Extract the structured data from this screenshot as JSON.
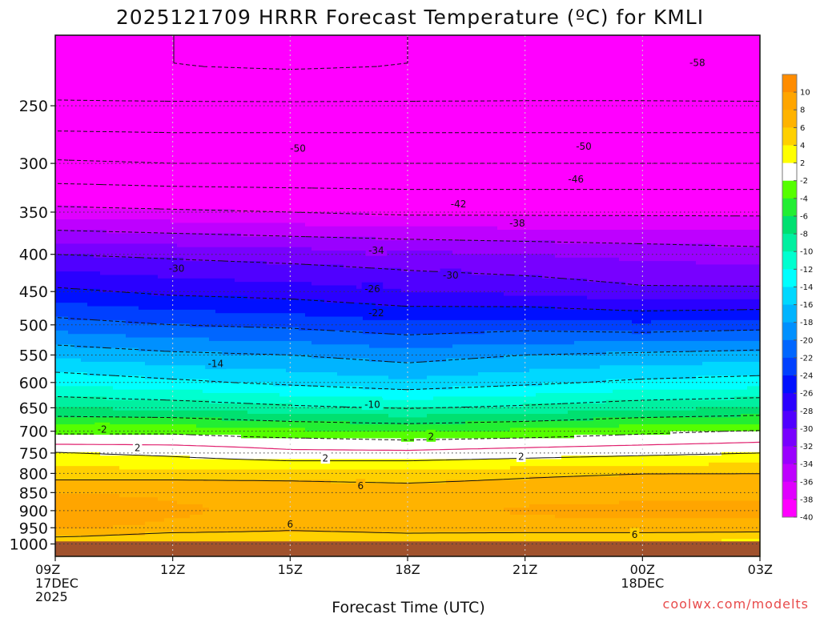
{
  "chart_data": {
    "type": "heatmap",
    "title": "2025121709 HRRR Forecast Temperature (ºC) for KMLI",
    "xlabel": "Forecast Time (UTC)",
    "ylabel": "",
    "credit": "coolwx.com/modelts",
    "x_ticks": [
      {
        "hour": 0,
        "lines": [
          "09Z",
          "17DEC",
          "2025"
        ]
      },
      {
        "hour": 3,
        "lines": [
          "12Z"
        ]
      },
      {
        "hour": 6,
        "lines": [
          "15Z"
        ]
      },
      {
        "hour": 9,
        "lines": [
          "18Z"
        ]
      },
      {
        "hour": 12,
        "lines": [
          "21Z"
        ]
      },
      {
        "hour": 15,
        "lines": [
          "00Z",
          "18DEC"
        ]
      },
      {
        "hour": 18,
        "lines": [
          "03Z"
        ]
      }
    ],
    "xlim": [
      0,
      18
    ],
    "y_axis": "pressure (hPa), reversed, log-pressure",
    "y_ticks": [
      250,
      300,
      350,
      400,
      450,
      500,
      550,
      600,
      650,
      700,
      750,
      800,
      850,
      900,
      950,
      1000
    ],
    "ylim": [
      1040,
      200
    ],
    "ground_level_hPa": 992,
    "ground_color": "#a0522d",
    "colorbar": {
      "labels": [
        "10",
        "8",
        "6",
        "4",
        "2",
        "-2",
        "-4",
        "-6",
        "-8",
        "-10",
        "-12",
        "-14",
        "-16",
        "-18",
        "-20",
        "-22",
        "-24",
        "-26",
        "-28",
        "-30",
        "-32",
        "-34",
        "-36",
        "-38",
        "-40"
      ],
      "bins": [
        {
          "lo": 10,
          "hi": 12,
          "color": "#ff8c00"
        },
        {
          "lo": 8,
          "hi": 10,
          "color": "#ffa500"
        },
        {
          "lo": 6,
          "hi": 8,
          "color": "#ffb300"
        },
        {
          "lo": 4,
          "hi": 6,
          "color": "#ffd000"
        },
        {
          "lo": 2,
          "hi": 4,
          "color": "#ffff00"
        },
        {
          "lo": -2,
          "hi": 2,
          "color": "#ffffff"
        },
        {
          "lo": -4,
          "hi": -2,
          "color": "#55ff00"
        },
        {
          "lo": -6,
          "hi": -4,
          "color": "#22ee33"
        },
        {
          "lo": -8,
          "hi": -6,
          "color": "#00e070"
        },
        {
          "lo": -10,
          "hi": -8,
          "color": "#00f0a0"
        },
        {
          "lo": -12,
          "hi": -10,
          "color": "#00ffd0"
        },
        {
          "lo": -14,
          "hi": -12,
          "color": "#00ffff"
        },
        {
          "lo": -16,
          "hi": -14,
          "color": "#00d8ff"
        },
        {
          "lo": -18,
          "hi": -16,
          "color": "#00b4ff"
        },
        {
          "lo": -20,
          "hi": -18,
          "color": "#0090ff"
        },
        {
          "lo": -22,
          "hi": -20,
          "color": "#0066ff"
        },
        {
          "lo": -24,
          "hi": -22,
          "color": "#0040ff"
        },
        {
          "lo": -26,
          "hi": -24,
          "color": "#0010ff"
        },
        {
          "lo": -28,
          "hi": -26,
          "color": "#2a00ff"
        },
        {
          "lo": -30,
          "hi": -28,
          "color": "#5000ff"
        },
        {
          "lo": -32,
          "hi": -30,
          "color": "#7800ff"
        },
        {
          "lo": -34,
          "hi": -32,
          "color": "#9a00ff"
        },
        {
          "lo": -36,
          "hi": -34,
          "color": "#be00ff"
        },
        {
          "lo": -38,
          "hi": -36,
          "color": "#e000ff"
        },
        {
          "lo": -40,
          "hi": -38,
          "color": "#ff00ff"
        }
      ],
      "below_color": "#ff00ff"
    },
    "temperature_profile": {
      "hours": [
        0,
        3,
        6,
        9,
        12,
        15,
        18
      ],
      "levels_hPa": [
        1000,
        975,
        950,
        925,
        900,
        875,
        850,
        825,
        800,
        775,
        750,
        725,
        700,
        650,
        600,
        550,
        500,
        450,
        400,
        350,
        300,
        250,
        220
      ],
      "values_C": [
        [
          3,
          4,
          4,
          4,
          4,
          4,
          3
        ],
        [
          6.5,
          5,
          5,
          5.5,
          5,
          5,
          5
        ],
        [
          8.5,
          7.5,
          6.5,
          7,
          7.5,
          7.5,
          7
        ],
        [
          9,
          8,
          7.2,
          7.2,
          7.8,
          8,
          8
        ],
        [
          10,
          8.3,
          7.5,
          7.5,
          8.2,
          8.5,
          8.5
        ],
        [
          9.2,
          8,
          7.7,
          7.5,
          7.8,
          8,
          8
        ],
        [
          8,
          7.5,
          7.2,
          7,
          7.2,
          7.5,
          7.5
        ],
        [
          6.5,
          6.5,
          6.3,
          6,
          6.5,
          7,
          7
        ],
        [
          5,
          5,
          5,
          4.8,
          5.5,
          6,
          6
        ],
        [
          3.5,
          3,
          2.5,
          2.5,
          3,
          3.5,
          4
        ],
        [
          2.2,
          1.5,
          0.5,
          0.5,
          1,
          1.5,
          2
        ],
        [
          -0.5,
          -0.5,
          -1,
          -1.5,
          -1,
          -0.5,
          0
        ],
        [
          -2.5,
          -2.5,
          -3.5,
          -4,
          -3.5,
          -2.5,
          -1.8
        ],
        [
          -8,
          -8.5,
          -9.5,
          -10.2,
          -9.5,
          -8.5,
          -8
        ],
        [
          -12.5,
          -13.5,
          -14.5,
          -15.5,
          -14.5,
          -13.5,
          -13
        ],
        [
          -16.5,
          -17.5,
          -18,
          -19,
          -18,
          -17.5,
          -17
        ],
        [
          -21,
          -22,
          -22.5,
          -23.5,
          -23,
          -23.5,
          -23
        ],
        [
          -25.5,
          -26.5,
          -27,
          -28,
          -28.5,
          -29.5,
          -29.5
        ],
        [
          -30,
          -30.5,
          -31,
          -31.5,
          -32,
          -32.5,
          -33
        ],
        [
          -37,
          -37.5,
          -38,
          -38.5,
          -38.5,
          -38.5,
          -38.5
        ],
        [
          -45.5,
          -46,
          -46,
          -46,
          -46,
          -46,
          -46
        ],
        [
          -53.5,
          -53.5,
          -53.5,
          -53.5,
          -53.5,
          -53.5,
          -53.5
        ],
        [
          -57,
          -58,
          -58.5,
          -58,
          -57.5,
          -57.5,
          -58
        ]
      ]
    },
    "contour_labels": [
      {
        "text": "-58",
        "hour": 16.4,
        "p": 218
      },
      {
        "text": "-50",
        "hour": 6.2,
        "p": 286
      },
      {
        "text": "-50",
        "hour": 13.5,
        "p": 284
      },
      {
        "text": "-46",
        "hour": 13.3,
        "p": 315
      },
      {
        "text": "-42",
        "hour": 10.3,
        "p": 341
      },
      {
        "text": "-38",
        "hour": 11.8,
        "p": 362
      },
      {
        "text": "-34",
        "hour": 8.2,
        "p": 395
      },
      {
        "text": "-30",
        "hour": 3.1,
        "p": 418
      },
      {
        "text": "-30",
        "hour": 10.1,
        "p": 427
      },
      {
        "text": "-26",
        "hour": 8.1,
        "p": 446
      },
      {
        "text": "-22",
        "hour": 8.2,
        "p": 481
      },
      {
        "text": "-14",
        "hour": 4.1,
        "p": 565
      },
      {
        "text": "-10",
        "hour": 8.1,
        "p": 643
      },
      {
        "text": "-2",
        "hour": 1.2,
        "p": 695
      },
      {
        "text": "2",
        "hour": 9.6,
        "p": 711
      },
      {
        "text": "2",
        "hour": 2.1,
        "p": 737
      },
      {
        "text": "2",
        "hour": 6.9,
        "p": 762
      },
      {
        "text": "2",
        "hour": 11.9,
        "p": 758
      },
      {
        "text": "6",
        "hour": 7.8,
        "p": 831
      },
      {
        "text": "6",
        "hour": 6.0,
        "p": 939
      },
      {
        "text": "6",
        "hour": 14.8,
        "p": 970
      }
    ]
  }
}
